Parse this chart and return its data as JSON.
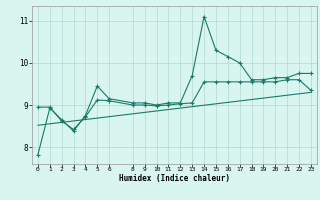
{
  "xlabel": "Humidex (Indice chaleur)",
  "ylabel": "",
  "background_color": "#d8f5ef",
  "grid_color": "#b8ddd7",
  "line_color": "#1a7a6a",
  "xlim": [
    -0.5,
    23.5
  ],
  "ylim": [
    7.6,
    11.35
  ],
  "yticks": [
    8,
    9,
    10,
    11
  ],
  "xticks": [
    0,
    1,
    2,
    3,
    4,
    5,
    6,
    8,
    9,
    10,
    11,
    12,
    13,
    14,
    15,
    16,
    17,
    18,
    19,
    20,
    21,
    22,
    23
  ],
  "line1_x": [
    0,
    1,
    2,
    3,
    4,
    5,
    6,
    8,
    9,
    10,
    11,
    12,
    13,
    14,
    15,
    16,
    17,
    18,
    19,
    20,
    21,
    22,
    23
  ],
  "line1_y": [
    7.82,
    8.93,
    8.65,
    8.38,
    8.75,
    9.45,
    9.15,
    9.05,
    9.05,
    9.0,
    9.05,
    9.05,
    9.7,
    11.1,
    10.3,
    10.15,
    10.0,
    9.6,
    9.6,
    9.65,
    9.65,
    9.75,
    9.75
  ],
  "line2_x": [
    0,
    1,
    2,
    3,
    4,
    5,
    6,
    8,
    9,
    10,
    11,
    12,
    13,
    14,
    15,
    16,
    17,
    18,
    19,
    20,
    21,
    22,
    23
  ],
  "line2_y": [
    8.95,
    8.95,
    8.62,
    8.42,
    8.72,
    9.12,
    9.1,
    9.0,
    9.0,
    8.98,
    9.0,
    9.03,
    9.05,
    9.55,
    9.55,
    9.55,
    9.55,
    9.55,
    9.55,
    9.55,
    9.6,
    9.6,
    9.35
  ],
  "line3_x": [
    0,
    23
  ],
  "line3_y": [
    8.52,
    9.3
  ]
}
